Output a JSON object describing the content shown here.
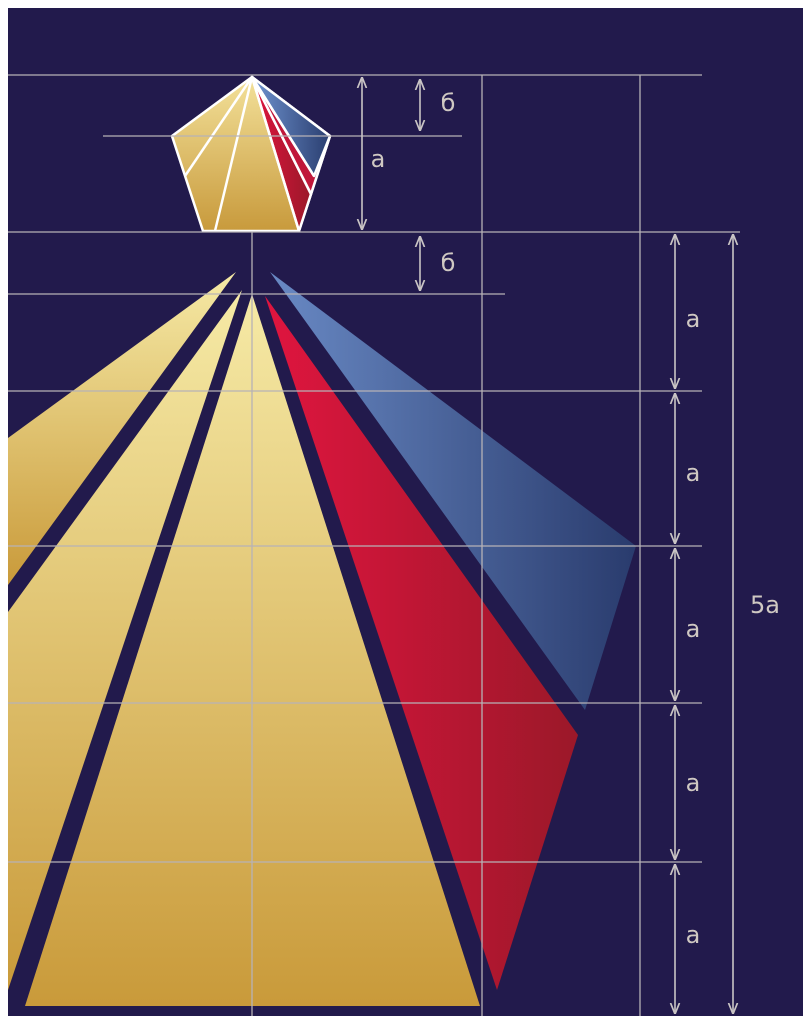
{
  "pentagon_label": "а",
  "b_labels": [
    "б",
    "б"
  ],
  "a_labels": [
    "а",
    "а",
    "а",
    "а",
    "а"
  ],
  "total_label": "5а"
}
